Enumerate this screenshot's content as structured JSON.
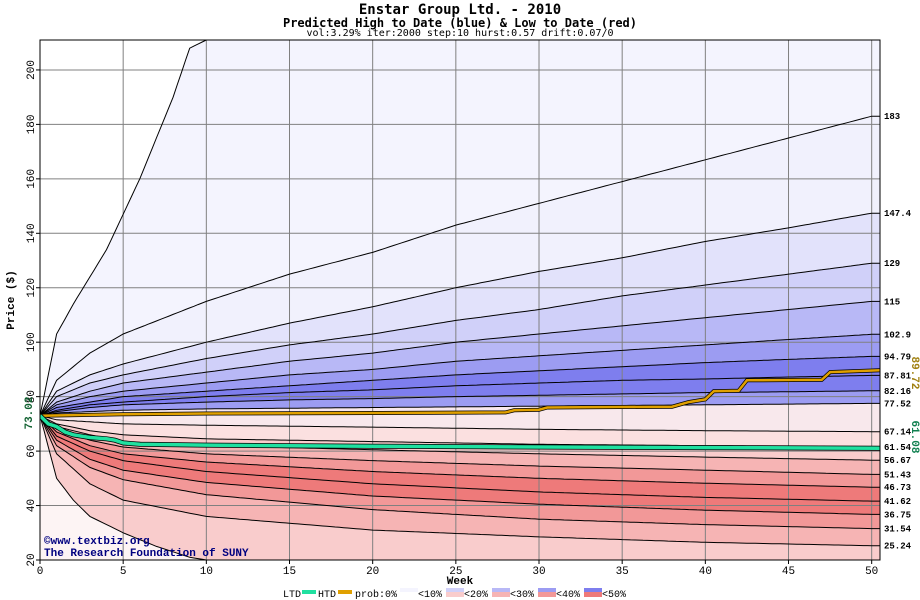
{
  "titles": {
    "main": "Enstar Group Ltd. - 2010",
    "sub": "Predicted High to Date (blue) &  Low to Date (red)",
    "params": "vol:3.29% iter:2000 step:10 hurst:0.57 drift:0.07/0"
  },
  "colors": {
    "ltd": "#20e0a0",
    "htd": "#e0a000",
    "blue_bands": [
      "#f1f1fd",
      "#e2e2fb",
      "#d0d0f9",
      "#b8b8f6",
      "#9c9cf2",
      "#7e7eee"
    ],
    "red_bands": [
      "#fdf1f1",
      "#fbe0e0",
      "#f9cccc",
      "#f6b4b4",
      "#f29898",
      "#ee7a7a"
    ],
    "grid": "#808080",
    "outline": "#000000"
  },
  "watermark": {
    "line1": "©www.textbiz.org",
    "line2": "The Research Foundation of SUNY"
  },
  "legend": {
    "ltd_label": "LTD",
    "htd_label": "HTD",
    "prob_label": "prob:0%",
    "bins": [
      "<10%",
      "<20%",
      "<30%",
      "<40%",
      "<50%"
    ]
  },
  "chart_data": {
    "type": "area",
    "xlabel": "Week",
    "ylabel": "Price ($)",
    "xlim": [
      0,
      50.5
    ],
    "ylim": [
      20,
      211
    ],
    "xticks": [
      0,
      5,
      10,
      15,
      20,
      25,
      30,
      35,
      40,
      45,
      50
    ],
    "yticks": [
      20,
      40,
      60,
      80,
      100,
      120,
      140,
      160,
      180,
      200
    ],
    "start_price": 73.02,
    "start_label": "73.02",
    "end_high_label": "89.72",
    "end_low_label": "61.08",
    "upper_curves": [
      {
        "label": "",
        "points": [
          [
            0,
            73.02
          ],
          [
            1,
            103
          ],
          [
            2,
            114
          ],
          [
            4,
            134
          ],
          [
            6,
            160
          ],
          [
            8,
            190
          ],
          [
            9,
            208
          ],
          [
            10,
            211
          ],
          [
            50.5,
            211
          ]
        ]
      },
      {
        "label": "183",
        "points": [
          [
            0,
            73.02
          ],
          [
            1,
            86
          ],
          [
            3,
            96
          ],
          [
            5,
            103
          ],
          [
            10,
            115
          ],
          [
            15,
            125
          ],
          [
            20,
            133
          ],
          [
            25,
            143
          ],
          [
            30,
            151
          ],
          [
            35,
            159
          ],
          [
            40,
            167
          ],
          [
            45,
            175
          ],
          [
            50,
            183
          ]
        ]
      },
      {
        "label": "147.4",
        "points": [
          [
            0,
            73.02
          ],
          [
            1,
            82
          ],
          [
            3,
            88
          ],
          [
            5,
            92
          ],
          [
            10,
            100
          ],
          [
            15,
            107
          ],
          [
            20,
            113
          ],
          [
            25,
            120
          ],
          [
            30,
            126
          ],
          [
            35,
            131
          ],
          [
            40,
            137
          ],
          [
            45,
            142
          ],
          [
            50,
            147.4
          ]
        ]
      },
      {
        "label": "129",
        "points": [
          [
            0,
            73.02
          ],
          [
            1,
            80
          ],
          [
            3,
            85
          ],
          [
            5,
            88
          ],
          [
            10,
            94
          ],
          [
            15,
            99
          ],
          [
            20,
            103
          ],
          [
            25,
            108
          ],
          [
            30,
            112
          ],
          [
            35,
            117
          ],
          [
            40,
            121
          ],
          [
            45,
            125
          ],
          [
            50,
            129
          ]
        ]
      },
      {
        "label": "115",
        "points": [
          [
            0,
            73.02
          ],
          [
            1,
            78
          ],
          [
            3,
            82
          ],
          [
            5,
            85
          ],
          [
            10,
            89
          ],
          [
            15,
            93
          ],
          [
            20,
            96
          ],
          [
            25,
            100
          ],
          [
            30,
            103
          ],
          [
            35,
            106
          ],
          [
            40,
            109
          ],
          [
            45,
            112
          ],
          [
            50,
            115
          ]
        ]
      },
      {
        "label": "102.9",
        "points": [
          [
            0,
            73.02
          ],
          [
            1,
            77
          ],
          [
            3,
            80
          ],
          [
            5,
            82
          ],
          [
            10,
            85
          ],
          [
            15,
            88
          ],
          [
            20,
            90
          ],
          [
            25,
            93
          ],
          [
            30,
            95
          ],
          [
            35,
            97
          ],
          [
            40,
            99
          ],
          [
            45,
            101
          ],
          [
            50,
            102.9
          ]
        ]
      },
      {
        "label": "94.79",
        "points": [
          [
            0,
            73.02
          ],
          [
            1,
            76
          ],
          [
            3,
            78
          ],
          [
            5,
            80
          ],
          [
            10,
            82
          ],
          [
            15,
            84
          ],
          [
            20,
            86
          ],
          [
            25,
            88
          ],
          [
            30,
            89.5
          ],
          [
            35,
            91
          ],
          [
            40,
            92.5
          ],
          [
            45,
            93.7
          ],
          [
            50,
            94.79
          ]
        ]
      },
      {
        "label": "87.81",
        "points": [
          [
            0,
            73.02
          ],
          [
            1,
            75
          ],
          [
            3,
            77
          ],
          [
            5,
            78
          ],
          [
            10,
            80
          ],
          [
            15,
            81.5
          ],
          [
            20,
            82.5
          ],
          [
            25,
            84
          ],
          [
            30,
            85
          ],
          [
            35,
            86
          ],
          [
            40,
            86.5
          ],
          [
            45,
            87.2
          ],
          [
            50,
            87.81
          ]
        ]
      },
      {
        "label": "82.16",
        "points": [
          [
            0,
            73.02
          ],
          [
            1,
            74.5
          ],
          [
            3,
            76
          ],
          [
            5,
            77
          ],
          [
            10,
            78
          ],
          [
            15,
            78.8
          ],
          [
            20,
            79.3
          ],
          [
            25,
            80
          ],
          [
            30,
            80.5
          ],
          [
            35,
            81
          ],
          [
            40,
            81.5
          ],
          [
            45,
            81.8
          ],
          [
            50,
            82.16
          ]
        ]
      },
      {
        "label": "77.52",
        "points": [
          [
            0,
            73.02
          ],
          [
            1,
            74
          ],
          [
            5,
            75
          ],
          [
            10,
            75.5
          ],
          [
            20,
            76
          ],
          [
            30,
            76.5
          ],
          [
            40,
            77
          ],
          [
            50,
            77.52
          ]
        ]
      }
    ],
    "lower_curves": [
      {
        "label": "67.14",
        "points": [
          [
            0,
            73.02
          ],
          [
            1,
            71.5
          ],
          [
            5,
            70
          ],
          [
            10,
            69.5
          ],
          [
            20,
            68.8
          ],
          [
            30,
            68
          ],
          [
            40,
            67.5
          ],
          [
            50,
            67.14
          ]
        ]
      },
      {
        "label": "61.54",
        "points": [
          [
            0,
            73.02
          ],
          [
            1,
            70
          ],
          [
            3,
            67.5
          ],
          [
            5,
            66
          ],
          [
            10,
            64.5
          ],
          [
            20,
            63.5
          ],
          [
            30,
            62.5
          ],
          [
            40,
            62
          ],
          [
            50,
            61.54
          ]
        ]
      },
      {
        "label": "56.67",
        "points": [
          [
            0,
            73.02
          ],
          [
            1,
            69
          ],
          [
            3,
            66
          ],
          [
            5,
            63.5
          ],
          [
            10,
            62
          ],
          [
            20,
            60.5
          ],
          [
            30,
            59
          ],
          [
            40,
            57.8
          ],
          [
            50,
            56.67
          ]
        ]
      },
      {
        "label": "51.43",
        "points": [
          [
            0,
            73.02
          ],
          [
            1,
            68
          ],
          [
            3,
            64
          ],
          [
            5,
            61.5
          ],
          [
            10,
            59
          ],
          [
            20,
            56.5
          ],
          [
            30,
            54.5
          ],
          [
            40,
            53
          ],
          [
            50,
            51.43
          ]
        ]
      },
      {
        "label": "46.73",
        "points": [
          [
            0,
            73.02
          ],
          [
            1,
            67
          ],
          [
            3,
            62
          ],
          [
            5,
            59
          ],
          [
            10,
            56
          ],
          [
            20,
            52.5
          ],
          [
            30,
            50
          ],
          [
            40,
            48.2
          ],
          [
            50,
            46.73
          ]
        ]
      },
      {
        "label": "41.62",
        "points": [
          [
            0,
            73.02
          ],
          [
            1,
            65.5
          ],
          [
            3,
            60
          ],
          [
            5,
            56.5
          ],
          [
            10,
            52.5
          ],
          [
            20,
            48
          ],
          [
            30,
            45
          ],
          [
            40,
            43
          ],
          [
            50,
            41.62
          ]
        ]
      },
      {
        "label": "36.75",
        "points": [
          [
            0,
            73.02
          ],
          [
            1,
            64
          ],
          [
            3,
            57
          ],
          [
            5,
            53
          ],
          [
            10,
            48.5
          ],
          [
            20,
            43.5
          ],
          [
            30,
            40.5
          ],
          [
            40,
            38.3
          ],
          [
            50,
            36.75
          ]
        ]
      },
      {
        "label": "31.54",
        "points": [
          [
            0,
            73.02
          ],
          [
            1,
            62
          ],
          [
            3,
            54
          ],
          [
            5,
            49.5
          ],
          [
            10,
            44
          ],
          [
            20,
            38.5
          ],
          [
            30,
            35
          ],
          [
            40,
            33
          ],
          [
            50,
            31.54
          ]
        ]
      },
      {
        "label": "25.24",
        "points": [
          [
            0,
            73.02
          ],
          [
            1,
            59
          ],
          [
            3,
            48
          ],
          [
            5,
            42
          ],
          [
            10,
            36
          ],
          [
            20,
            31
          ],
          [
            30,
            28.5
          ],
          [
            40,
            26.5
          ],
          [
            50,
            25.24
          ]
        ]
      },
      {
        "label": "",
        "points": [
          [
            0,
            73.02
          ],
          [
            1,
            50
          ],
          [
            2,
            42
          ],
          [
            3,
            36
          ],
          [
            5,
            30
          ],
          [
            7,
            25
          ],
          [
            9,
            21
          ],
          [
            10,
            20
          ]
        ]
      }
    ],
    "htd_series": {
      "name": "HTD",
      "points": [
        [
          0,
          73.02
        ],
        [
          5,
          73.5
        ],
        [
          10,
          73.8
        ],
        [
          20,
          74
        ],
        [
          28,
          74.2
        ],
        [
          28.5,
          75
        ],
        [
          30,
          75.2
        ],
        [
          30.5,
          76
        ],
        [
          38,
          76.3
        ],
        [
          39,
          78
        ],
        [
          40,
          79
        ],
        [
          40.5,
          82
        ],
        [
          42,
          82.2
        ],
        [
          42.5,
          86
        ],
        [
          47,
          86.2
        ],
        [
          47.5,
          89
        ],
        [
          50.5,
          89.72
        ]
      ]
    },
    "ltd_series": {
      "name": "LTD",
      "points": [
        [
          0,
          73.02
        ],
        [
          0.5,
          70
        ],
        [
          1,
          69
        ],
        [
          1.5,
          67
        ],
        [
          2,
          66
        ],
        [
          3,
          65
        ],
        [
          4,
          64.5
        ],
        [
          4.5,
          64
        ],
        [
          5,
          63
        ],
        [
          6,
          62.5
        ],
        [
          10,
          62.2
        ],
        [
          15,
          62
        ],
        [
          20,
          61.8
        ],
        [
          30,
          61.5
        ],
        [
          40,
          61.3
        ],
        [
          50.5,
          61.08
        ]
      ]
    }
  }
}
